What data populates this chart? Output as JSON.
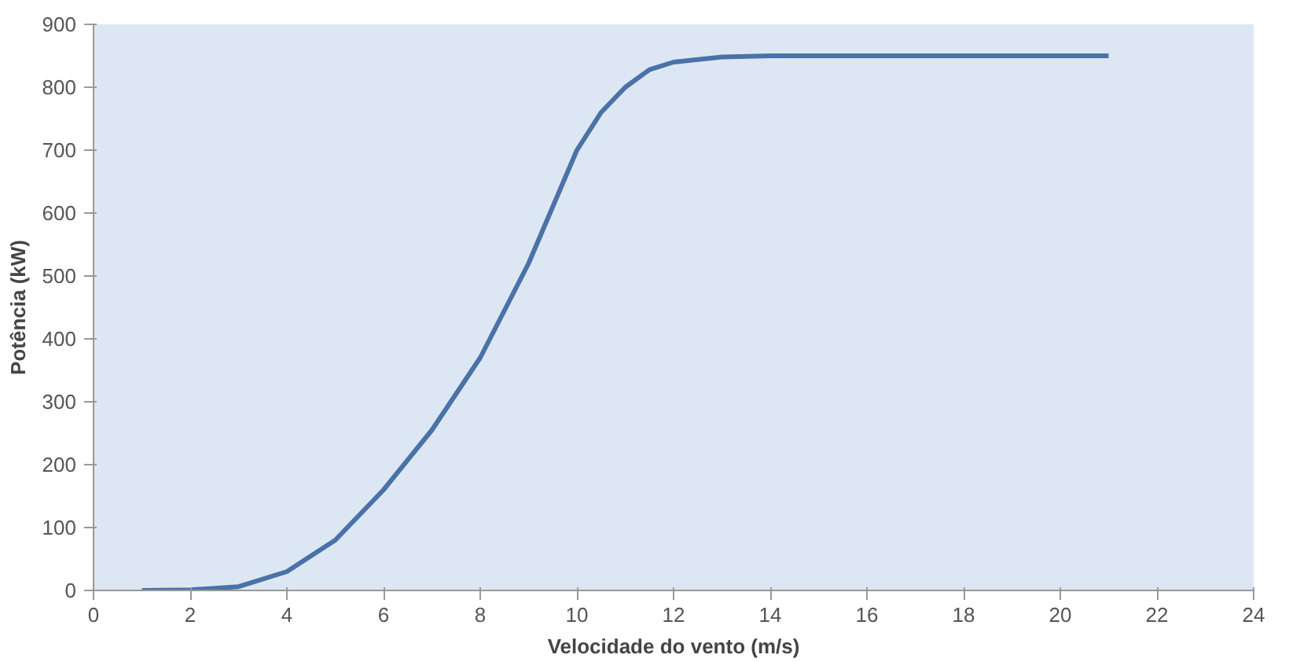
{
  "chart_data": {
    "type": "line",
    "xlabel": "Velocidade do vento (m/s)",
    "ylabel": "Potência (kW)",
    "x": [
      1,
      2,
      3,
      4,
      5,
      6,
      7,
      8,
      9,
      10,
      10.5,
      11,
      11.5,
      12,
      13,
      14,
      15,
      16,
      17,
      18,
      19,
      20,
      21
    ],
    "series": [
      {
        "color": "#4a72a8",
        "values": [
          0,
          1,
          6,
          30,
          80,
          160,
          255,
          370,
          520,
          700,
          760,
          800,
          828,
          840,
          848,
          850,
          850,
          850,
          850,
          850,
          850,
          850,
          850
        ]
      }
    ],
    "xlim": [
      0,
      24
    ],
    "xticks": [
      0,
      2,
      4,
      6,
      8,
      10,
      12,
      14,
      16,
      18,
      20,
      22,
      24
    ],
    "ylim": [
      0,
      900
    ],
    "yticks": [
      0,
      100,
      200,
      300,
      400,
      500,
      600,
      700,
      800,
      900
    ],
    "grid": false,
    "marker": "none",
    "line_style": "solid"
  }
}
